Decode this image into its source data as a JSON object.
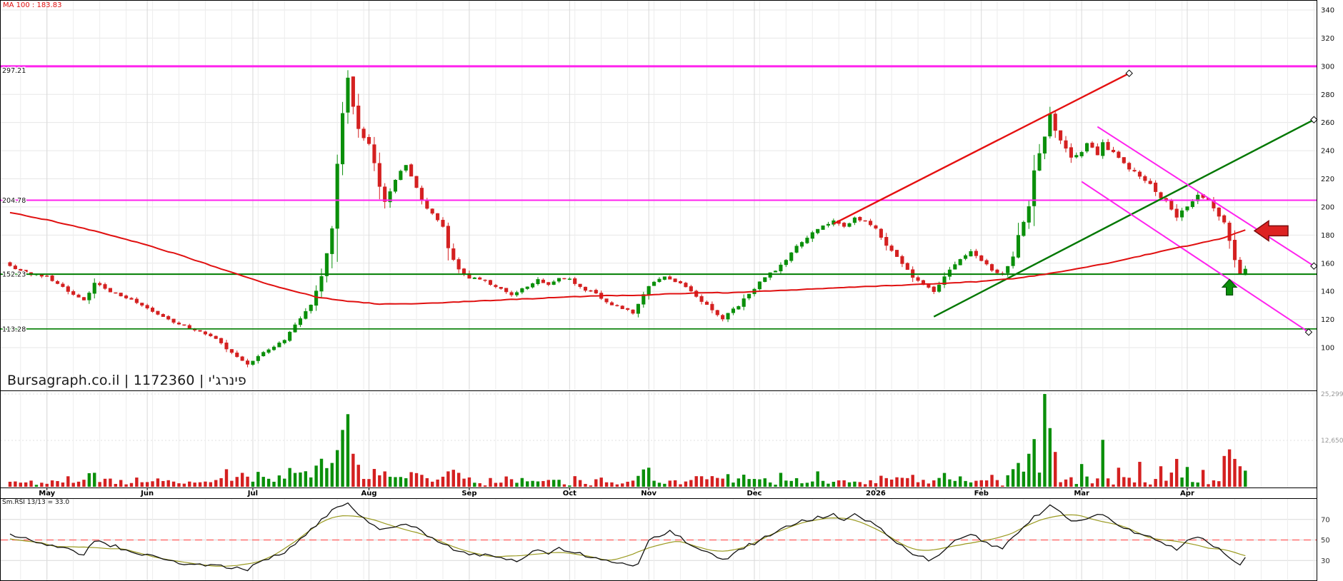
{
  "app": {
    "watermark": "Bursagraph.co.il | 1172360 | פינרג'י"
  },
  "price_panel": {
    "ma_label": "MA 100 : 183.83",
    "y_ticks": [
      340,
      320,
      300,
      280,
      260,
      240,
      220,
      200,
      180,
      160,
      140,
      120,
      100
    ],
    "left_price_labels": [
      {
        "text": "297.21",
        "price": 297.21
      },
      {
        "text": "204.78",
        "price": 204.78
      },
      {
        "text": "152.23",
        "price": 152.23
      },
      {
        "text": "113.28",
        "price": 113.28
      }
    ]
  },
  "volume_panel": {
    "axis_labels": [
      {
        "text": "25,299",
        "value": 25299
      },
      {
        "text": "12,650",
        "value": 12650
      }
    ]
  },
  "rsi_panel": {
    "label": "Sm.RSI 13/13 = 33.0",
    "levels": [
      70,
      50,
      30
    ],
    "dashed_level": 50,
    "current": 33.0
  },
  "x_axis": {
    "month_ticks": [
      {
        "i": 7,
        "label": "May"
      },
      {
        "i": 26,
        "label": "Jun"
      },
      {
        "i": 46,
        "label": "Jul"
      },
      {
        "i": 68,
        "label": "Aug"
      },
      {
        "i": 87,
        "label": "Sep"
      },
      {
        "i": 106,
        "label": "Oct"
      },
      {
        "i": 121,
        "label": "Nov"
      },
      {
        "i": 141,
        "label": "Dec"
      },
      {
        "i": 164,
        "label": "2026"
      },
      {
        "i": 184,
        "label": "Feb"
      },
      {
        "i": 203,
        "label": "Mar"
      },
      {
        "i": 223,
        "label": "Apr"
      }
    ]
  },
  "colors": {
    "up": "#0a8f0a",
    "down": "#d42020",
    "ma": "#e01010",
    "trend_red": "#e51010",
    "trend_green": "#007700",
    "channel_magenta": "#ff22ee",
    "level_magenta": "#ff22ee",
    "level_green": "#007d00",
    "rsi_line": "#111111",
    "rsi_smooth": "#9a9a20",
    "rsi_dashed": "#ff7070",
    "grid": "#e7e7e7",
    "grid_v": "#ededed",
    "grid_month": "#d9d9d9",
    "axis_text": "#111111",
    "vol_axis_text": "#999999",
    "arrow_red": "#dd2222",
    "arrow_red_edge": "#7a0c0c",
    "arrow_green": "#0a8f0a",
    "arrow_green_edge": "#06500b",
    "frame": "#000000",
    "diamond_fill": "#ffffff",
    "diamond_edge": "#000000"
  },
  "chart_data": [
    {
      "type": "candlestick",
      "title": "Daily price with MA100, levels, trend channel",
      "x_unit": "trading-day-index",
      "n": 235,
      "ylim": [
        100,
        340
      ],
      "close_anchors": [
        [
          0,
          158
        ],
        [
          3,
          153
        ],
        [
          7,
          150
        ],
        [
          10,
          143
        ],
        [
          14,
          133
        ],
        [
          16,
          146
        ],
        [
          19,
          140
        ],
        [
          22,
          136
        ],
        [
          26,
          128
        ],
        [
          31,
          118
        ],
        [
          35,
          113
        ],
        [
          39,
          106
        ],
        [
          42,
          96
        ],
        [
          45,
          88
        ],
        [
          48,
          97
        ],
        [
          52,
          105
        ],
        [
          54,
          116
        ],
        [
          57,
          130
        ],
        [
          59,
          150
        ],
        [
          61,
          185
        ],
        [
          62,
          230
        ],
        [
          63,
          268
        ],
        [
          64,
          292
        ],
        [
          65,
          272
        ],
        [
          66,
          255
        ],
        [
          68,
          245
        ],
        [
          69,
          230
        ],
        [
          70,
          215
        ],
        [
          71,
          205
        ],
        [
          72,
          210
        ],
        [
          74,
          226
        ],
        [
          75,
          230
        ],
        [
          77,
          215
        ],
        [
          78,
          205
        ],
        [
          80,
          195
        ],
        [
          82,
          185
        ],
        [
          83,
          170
        ],
        [
          85,
          155
        ],
        [
          87,
          150
        ],
        [
          90,
          148
        ],
        [
          92,
          143
        ],
        [
          95,
          138
        ],
        [
          97,
          142
        ],
        [
          100,
          148
        ],
        [
          102,
          145
        ],
        [
          104,
          150
        ],
        [
          106,
          148
        ],
        [
          108,
          143
        ],
        [
          111,
          138
        ],
        [
          113,
          132
        ],
        [
          116,
          128
        ],
        [
          118,
          125
        ],
        [
          119,
          131
        ],
        [
          121,
          144
        ],
        [
          124,
          150
        ],
        [
          127,
          146
        ],
        [
          130,
          136
        ],
        [
          133,
          127
        ],
        [
          135,
          121
        ],
        [
          138,
          130
        ],
        [
          140,
          138
        ],
        [
          141,
          142
        ],
        [
          143,
          150
        ],
        [
          146,
          158
        ],
        [
          148,
          168
        ],
        [
          151,
          178
        ],
        [
          153,
          185
        ],
        [
          156,
          190
        ],
        [
          158,
          186
        ],
        [
          160,
          192
        ],
        [
          163,
          188
        ],
        [
          164,
          185
        ],
        [
          166,
          172
        ],
        [
          169,
          160
        ],
        [
          171,
          150
        ],
        [
          173,
          145
        ],
        [
          175,
          140
        ],
        [
          177,
          150
        ],
        [
          179,
          160
        ],
        [
          182,
          168
        ],
        [
          184,
          162
        ],
        [
          186,
          155
        ],
        [
          188,
          152
        ],
        [
          190,
          165
        ],
        [
          191,
          180
        ],
        [
          193,
          200
        ],
        [
          194,
          225
        ],
        [
          196,
          250
        ],
        [
          197,
          266
        ],
        [
          198,
          255
        ],
        [
          200,
          242
        ],
        [
          201,
          235
        ],
        [
          203,
          240
        ],
        [
          204,
          245
        ],
        [
          206,
          238
        ],
        [
          207,
          246
        ],
        [
          209,
          238
        ],
        [
          211,
          232
        ],
        [
          212,
          228
        ],
        [
          214,
          222
        ],
        [
          216,
          216
        ],
        [
          217,
          210
        ],
        [
          219,
          204
        ],
        [
          220,
          198
        ],
        [
          221,
          193
        ],
        [
          223,
          200
        ],
        [
          224,
          205
        ],
        [
          225,
          208
        ],
        [
          227,
          204
        ],
        [
          228,
          200
        ],
        [
          230,
          188
        ],
        [
          231,
          175
        ],
        [
          232,
          162
        ],
        [
          233,
          152
        ],
        [
          234,
          156
        ]
      ],
      "high_overrides": [
        [
          64,
          297.21
        ]
      ],
      "low_overrides": [
        [
          45,
          86
        ]
      ],
      "ma100_anchors": [
        [
          0,
          196
        ],
        [
          8,
          190
        ],
        [
          16,
          183
        ],
        [
          24,
          175
        ],
        [
          32,
          166
        ],
        [
          40,
          156
        ],
        [
          48,
          146
        ],
        [
          54,
          140
        ],
        [
          58,
          136
        ],
        [
          64,
          133
        ],
        [
          70,
          131
        ],
        [
          76,
          131
        ],
        [
          82,
          132
        ],
        [
          88,
          133
        ],
        [
          94,
          134
        ],
        [
          100,
          135
        ],
        [
          106,
          136
        ],
        [
          112,
          137
        ],
        [
          118,
          137
        ],
        [
          124,
          138
        ],
        [
          130,
          139
        ],
        [
          136,
          139
        ],
        [
          142,
          140
        ],
        [
          148,
          141
        ],
        [
          154,
          142
        ],
        [
          160,
          143
        ],
        [
          166,
          144
        ],
        [
          172,
          145
        ],
        [
          178,
          146
        ],
        [
          184,
          147
        ],
        [
          190,
          149
        ],
        [
          196,
          152
        ],
        [
          202,
          156
        ],
        [
          208,
          160
        ],
        [
          214,
          165
        ],
        [
          220,
          170
        ],
        [
          225,
          174
        ],
        [
          230,
          178
        ],
        [
          234,
          183.8
        ]
      ],
      "ma_current": 183.83,
      "horizontal_levels": [
        {
          "price": 300.0,
          "color": "#ff22ee",
          "width": 3
        },
        {
          "price": 204.78,
          "color": "#ff22ee",
          "width": 2
        },
        {
          "price": 152.23,
          "color": "#007d00",
          "width": 2
        },
        {
          "price": 113.28,
          "color": "#007d00",
          "width": 1.6
        }
      ],
      "trendlines": [
        {
          "name": "red-uptrend",
          "color": "#e51010",
          "width": 2.4,
          "from": [
            156,
            188
          ],
          "to": [
            212,
            295
          ],
          "diamond": true
        },
        {
          "name": "green-uptrend",
          "color": "#007700",
          "width": 2.4,
          "from": [
            175,
            122
          ],
          "to": [
            247,
            262
          ],
          "diamond": true
        },
        {
          "name": "magenta-channel-upper",
          "color": "#ff22ee",
          "width": 2,
          "from": [
            206,
            257
          ],
          "to": [
            247,
            158
          ],
          "diamond": true
        },
        {
          "name": "magenta-channel-lower",
          "color": "#ff22ee",
          "width": 2,
          "from": [
            203,
            218
          ],
          "to": [
            246,
            111
          ],
          "diamond": true
        }
      ],
      "annotations": [
        {
          "type": "arrow-left",
          "price": 183,
          "note": "MA touch / resistance"
        },
        {
          "type": "arrow-up",
          "x_i": 231,
          "price": 148.5,
          "note": "support bounce"
        }
      ]
    },
    {
      "type": "bar",
      "title": "Volume",
      "ymax": 25299,
      "tick_values": [
        25299,
        12650
      ],
      "overrides": [
        [
          61,
          6500
        ],
        [
          62,
          10000
        ],
        [
          63,
          15500
        ],
        [
          64,
          19800
        ],
        [
          65,
          9000
        ],
        [
          66,
          6000
        ],
        [
          83,
          4200
        ],
        [
          121,
          5200
        ],
        [
          146,
          3800
        ],
        [
          153,
          4200
        ],
        [
          190,
          4800
        ],
        [
          191,
          6500
        ],
        [
          193,
          9000
        ],
        [
          194,
          13000
        ],
        [
          196,
          25299
        ],
        [
          197,
          16000
        ],
        [
          198,
          9500
        ],
        [
          203,
          6200
        ],
        [
          207,
          12800
        ],
        [
          210,
          5200
        ],
        [
          214,
          6800
        ],
        [
          218,
          5600
        ],
        [
          221,
          7600
        ],
        [
          223,
          5400
        ],
        [
          226,
          4600
        ],
        [
          230,
          8400
        ],
        [
          231,
          10200
        ],
        [
          232,
          7600
        ],
        [
          233,
          5600
        ],
        [
          234,
          4400
        ]
      ]
    },
    {
      "type": "line",
      "title": "Sm.RSI 13/13",
      "ylim": [
        10,
        90
      ],
      "levels": [
        70,
        50,
        30
      ],
      "dashed_level": 50,
      "last_value": 33.0,
      "anchors": [
        [
          0,
          55
        ],
        [
          5,
          48
        ],
        [
          10,
          42
        ],
        [
          14,
          35
        ],
        [
          16,
          50
        ],
        [
          19,
          45
        ],
        [
          26,
          35
        ],
        [
          31,
          28
        ],
        [
          35,
          26
        ],
        [
          40,
          24
        ],
        [
          45,
          21
        ],
        [
          48,
          30
        ],
        [
          52,
          38
        ],
        [
          55,
          50
        ],
        [
          58,
          65
        ],
        [
          61,
          78
        ],
        [
          63,
          84
        ],
        [
          64,
          86
        ],
        [
          66,
          74
        ],
        [
          68,
          68
        ],
        [
          70,
          60
        ],
        [
          72,
          63
        ],
        [
          75,
          67
        ],
        [
          78,
          58
        ],
        [
          80,
          52
        ],
        [
          83,
          44
        ],
        [
          85,
          38
        ],
        [
          87,
          36
        ],
        [
          90,
          35
        ],
        [
          93,
          32
        ],
        [
          96,
          30
        ],
        [
          98,
          35
        ],
        [
          100,
          40
        ],
        [
          102,
          37
        ],
        [
          104,
          41
        ],
        [
          106,
          39
        ],
        [
          109,
          35
        ],
        [
          112,
          31
        ],
        [
          115,
          28
        ],
        [
          118,
          25
        ],
        [
          119,
          28
        ],
        [
          121,
          48
        ],
        [
          123,
          55
        ],
        [
          125,
          58
        ],
        [
          127,
          52
        ],
        [
          130,
          43
        ],
        [
          133,
          35
        ],
        [
          135,
          30
        ],
        [
          137,
          36
        ],
        [
          139,
          43
        ],
        [
          141,
          47
        ],
        [
          144,
          55
        ],
        [
          147,
          62
        ],
        [
          150,
          68
        ],
        [
          153,
          72
        ],
        [
          156,
          75
        ],
        [
          158,
          70
        ],
        [
          160,
          74
        ],
        [
          162,
          69
        ],
        [
          164,
          66
        ],
        [
          166,
          56
        ],
        [
          168,
          48
        ],
        [
          170,
          40
        ],
        [
          172,
          35
        ],
        [
          174,
          30
        ],
        [
          176,
          36
        ],
        [
          178,
          45
        ],
        [
          180,
          52
        ],
        [
          182,
          57
        ],
        [
          184,
          50
        ],
        [
          186,
          44
        ],
        [
          188,
          41
        ],
        [
          190,
          52
        ],
        [
          192,
          62
        ],
        [
          194,
          72
        ],
        [
          196,
          80
        ],
        [
          197,
          84
        ],
        [
          199,
          76
        ],
        [
          201,
          68
        ],
        [
          203,
          70
        ],
        [
          205,
          73
        ],
        [
          207,
          75
        ],
        [
          209,
          68
        ],
        [
          211,
          63
        ],
        [
          213,
          58
        ],
        [
          215,
          54
        ],
        [
          217,
          50
        ],
        [
          219,
          45
        ],
        [
          221,
          40
        ],
        [
          223,
          48
        ],
        [
          225,
          52
        ],
        [
          227,
          48
        ],
        [
          229,
          42
        ],
        [
          231,
          34
        ],
        [
          232,
          30
        ],
        [
          233,
          27
        ],
        [
          234,
          33
        ]
      ]
    }
  ]
}
